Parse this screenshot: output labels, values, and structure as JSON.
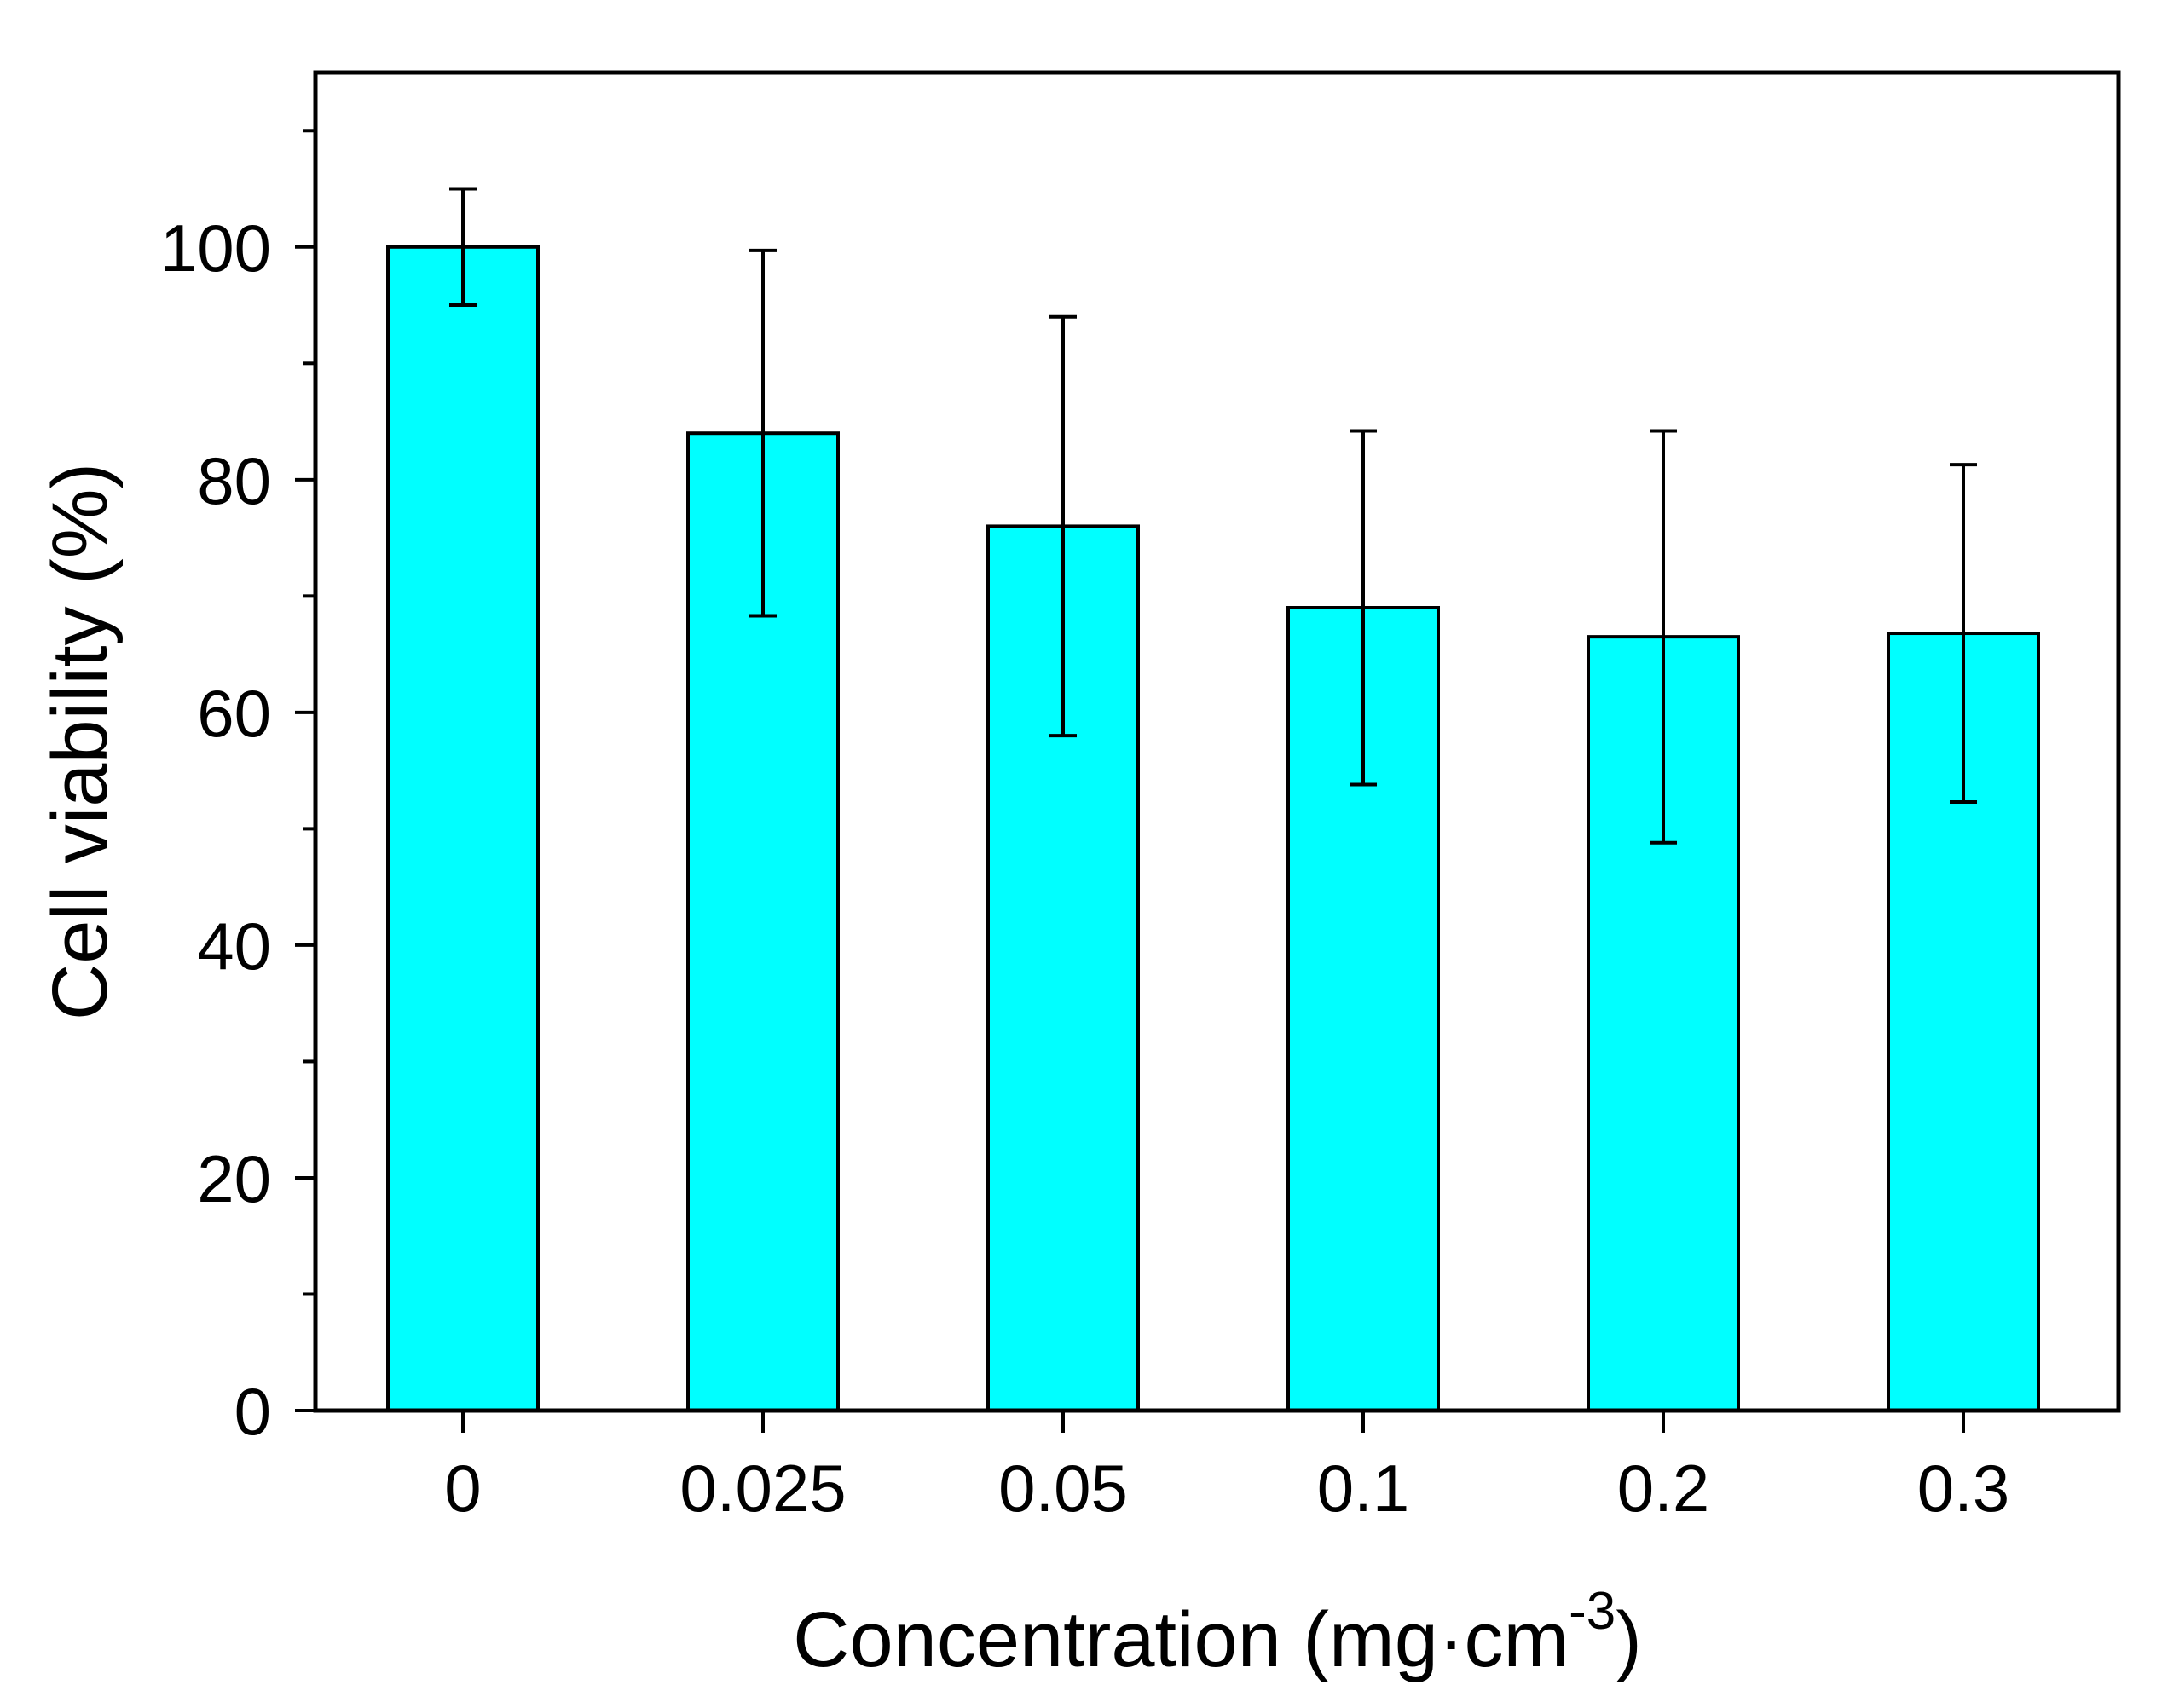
{
  "chart_data": {
    "type": "bar",
    "title": "",
    "categories": [
      "0",
      "0.025",
      "0.05",
      "0.1",
      "0.2",
      "0.3"
    ],
    "values": [
      100.0,
      84.0,
      76.0,
      69.0,
      66.5,
      66.8
    ],
    "errors": [
      5.0,
      15.7,
      18.0,
      15.2,
      17.7,
      14.5
    ],
    "ylim": [
      0,
      115
    ],
    "yticks": [
      0,
      20,
      40,
      60,
      80,
      100
    ],
    "yticks_labels": [
      "0",
      "20",
      "40",
      "60",
      "80",
      "100"
    ],
    "y_minor_step": 10,
    "xlabel_main": "Concentration (mg·cm",
    "xlabel_sup": "-3",
    "xlabel_close": ")",
    "ylabel": "Cell viability (%)",
    "bar_color": "#00FFFF",
    "edge_color": "#000000"
  }
}
